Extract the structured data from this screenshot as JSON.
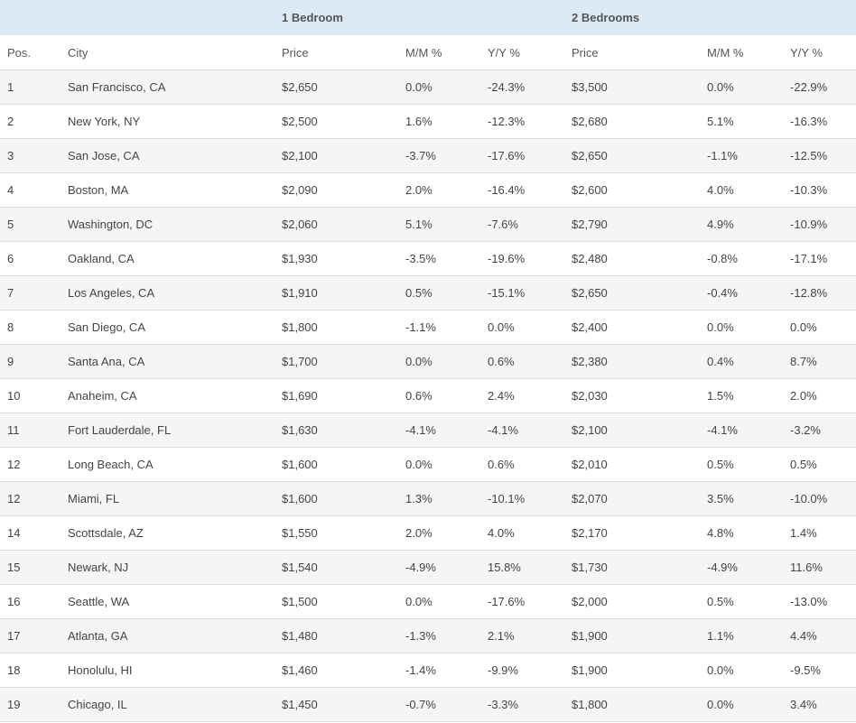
{
  "groups": {
    "one_bedroom": "1 Bedroom",
    "two_bedrooms": "2 Bedrooms"
  },
  "columns": {
    "pos": "Pos.",
    "city": "City",
    "price_1": "Price",
    "mm_1": "M/M %",
    "yy_1": "Y/Y %",
    "price_2": "Price",
    "mm_2": "M/M %",
    "yy_2": "Y/Y %"
  },
  "rows": [
    {
      "pos": "1",
      "city": "San Francisco, CA",
      "price_1": "$2,650",
      "mm_1": "0.0%",
      "yy_1": "-24.3%",
      "price_2": "$3,500",
      "mm_2": "0.0%",
      "yy_2": "-22.9%"
    },
    {
      "pos": "2",
      "city": "New York, NY",
      "price_1": "$2,500",
      "mm_1": "1.6%",
      "yy_1": "-12.3%",
      "price_2": "$2,680",
      "mm_2": "5.1%",
      "yy_2": "-16.3%"
    },
    {
      "pos": "3",
      "city": "San Jose, CA",
      "price_1": "$2,100",
      "mm_1": "-3.7%",
      "yy_1": "-17.6%",
      "price_2": "$2,650",
      "mm_2": "-1.1%",
      "yy_2": "-12.5%"
    },
    {
      "pos": "4",
      "city": "Boston, MA",
      "price_1": "$2,090",
      "mm_1": "2.0%",
      "yy_1": "-16.4%",
      "price_2": "$2,600",
      "mm_2": "4.0%",
      "yy_2": "-10.3%"
    },
    {
      "pos": "5",
      "city": "Washington, DC",
      "price_1": "$2,060",
      "mm_1": "5.1%",
      "yy_1": "-7.6%",
      "price_2": "$2,790",
      "mm_2": "4.9%",
      "yy_2": "-10.9%"
    },
    {
      "pos": "6",
      "city": "Oakland, CA",
      "price_1": "$1,930",
      "mm_1": "-3.5%",
      "yy_1": "-19.6%",
      "price_2": "$2,480",
      "mm_2": "-0.8%",
      "yy_2": "-17.1%"
    },
    {
      "pos": "7",
      "city": "Los Angeles, CA",
      "price_1": "$1,910",
      "mm_1": "0.5%",
      "yy_1": "-15.1%",
      "price_2": "$2,650",
      "mm_2": "-0.4%",
      "yy_2": "-12.8%"
    },
    {
      "pos": "8",
      "city": "San Diego, CA",
      "price_1": "$1,800",
      "mm_1": "-1.1%",
      "yy_1": "0.0%",
      "price_2": "$2,400",
      "mm_2": "0.0%",
      "yy_2": "0.0%"
    },
    {
      "pos": "9",
      "city": "Santa Ana, CA",
      "price_1": "$1,700",
      "mm_1": "0.0%",
      "yy_1": "0.6%",
      "price_2": "$2,380",
      "mm_2": "0.4%",
      "yy_2": "8.7%"
    },
    {
      "pos": "10",
      "city": "Anaheim, CA",
      "price_1": "$1,690",
      "mm_1": "0.6%",
      "yy_1": "2.4%",
      "price_2": "$2,030",
      "mm_2": "1.5%",
      "yy_2": "2.0%"
    },
    {
      "pos": "11",
      "city": "Fort Lauderdale, FL",
      "price_1": "$1,630",
      "mm_1": "-4.1%",
      "yy_1": "-4.1%",
      "price_2": "$2,100",
      "mm_2": "-4.1%",
      "yy_2": "-3.2%"
    },
    {
      "pos": "12",
      "city": "Long Beach, CA",
      "price_1": "$1,600",
      "mm_1": "0.0%",
      "yy_1": "0.6%",
      "price_2": "$2,010",
      "mm_2": "0.5%",
      "yy_2": "0.5%"
    },
    {
      "pos": "12",
      "city": "Miami, FL",
      "price_1": "$1,600",
      "mm_1": "1.3%",
      "yy_1": "-10.1%",
      "price_2": "$2,070",
      "mm_2": "3.5%",
      "yy_2": "-10.0%"
    },
    {
      "pos": "14",
      "city": "Scottsdale, AZ",
      "price_1": "$1,550",
      "mm_1": "2.0%",
      "yy_1": "4.0%",
      "price_2": "$2,170",
      "mm_2": "4.8%",
      "yy_2": "1.4%"
    },
    {
      "pos": "15",
      "city": "Newark, NJ",
      "price_1": "$1,540",
      "mm_1": "-4.9%",
      "yy_1": "15.8%",
      "price_2": "$1,730",
      "mm_2": "-4.9%",
      "yy_2": "11.6%"
    },
    {
      "pos": "16",
      "city": "Seattle, WA",
      "price_1": "$1,500",
      "mm_1": "0.0%",
      "yy_1": "-17.6%",
      "price_2": "$2,000",
      "mm_2": "0.5%",
      "yy_2": "-13.0%"
    },
    {
      "pos": "17",
      "city": "Atlanta, GA",
      "price_1": "$1,480",
      "mm_1": "-1.3%",
      "yy_1": "2.1%",
      "price_2": "$1,900",
      "mm_2": "1.1%",
      "yy_2": "4.4%"
    },
    {
      "pos": "18",
      "city": "Honolulu, HI",
      "price_1": "$1,460",
      "mm_1": "-1.4%",
      "yy_1": "-9.9%",
      "price_2": "$1,900",
      "mm_2": "0.0%",
      "yy_2": "-9.5%"
    },
    {
      "pos": "19",
      "city": "Chicago, IL",
      "price_1": "$1,450",
      "mm_1": "-0.7%",
      "yy_1": "-3.3%",
      "price_2": "$1,800",
      "mm_2": "0.0%",
      "yy_2": "3.4%"
    }
  ]
}
